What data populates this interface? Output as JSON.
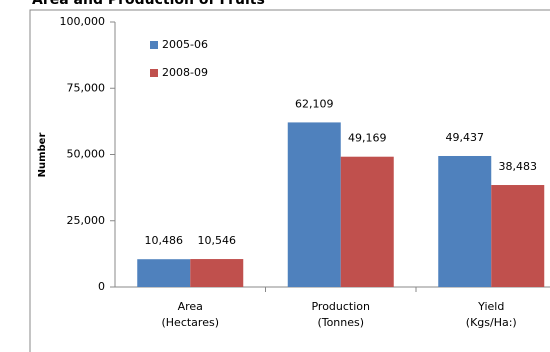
{
  "chart_data": {
    "type": "bar",
    "title": "Area and Production of Fruits",
    "y_label": "Number",
    "categories": [
      [
        "Area",
        "(Hectares)"
      ],
      [
        "Production",
        "(Tonnes)"
      ],
      [
        "Yield",
        "(Kgs/Ha:)"
      ]
    ],
    "series": [
      {
        "name": "2005-06",
        "color": "#4f81bd",
        "values": [
          10486,
          62109,
          49437
        ],
        "value_labels": [
          "10,486",
          "62,109",
          "49,437"
        ]
      },
      {
        "name": "2008-09",
        "color": "#c0504d",
        "values": [
          10546,
          49169,
          38483
        ],
        "value_labels": [
          "10,546",
          "49,169",
          "38,483"
        ]
      }
    ],
    "ylim": [
      0,
      100000
    ],
    "yticks": [
      {
        "value": 0,
        "label": "0"
      },
      {
        "value": 25000,
        "label": "25,000"
      },
      {
        "value": 50000,
        "label": "50,000"
      },
      {
        "value": 75000,
        "label": "75,000"
      },
      {
        "value": 100000,
        "label": "100,000"
      }
    ],
    "legend": "top-left"
  }
}
